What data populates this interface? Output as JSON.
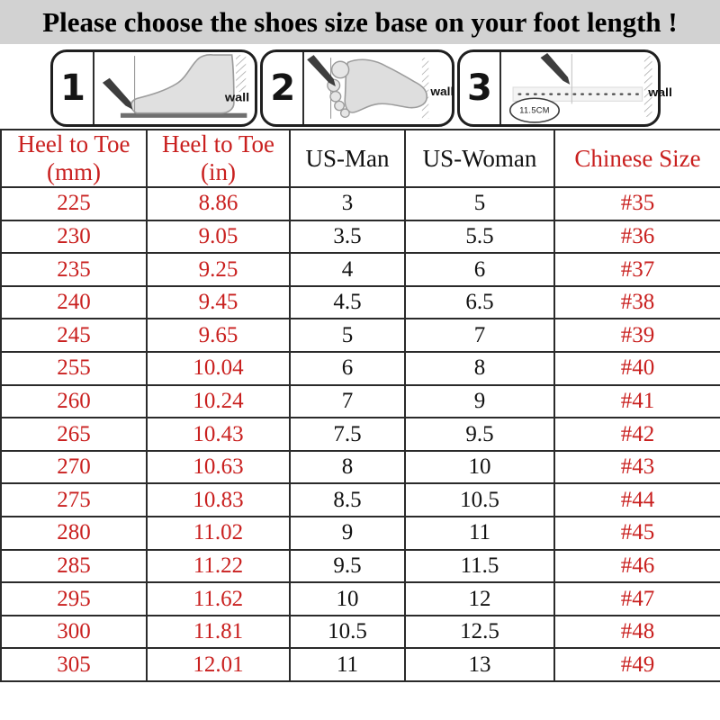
{
  "title": "Please choose the shoes size base on your foot length !",
  "instructions": {
    "panels": [
      {
        "step": "1",
        "wall_label": "wall"
      },
      {
        "step": "2",
        "wall_label": "wall"
      },
      {
        "step": "3",
        "wall_label": "wall",
        "measure_label": "11.5CM"
      }
    ]
  },
  "size_table": {
    "headers": [
      {
        "line1": "Heel to Toe",
        "line2": "(mm)",
        "color": "red"
      },
      {
        "line1": "Heel to Toe",
        "line2": "(in)",
        "color": "red"
      },
      {
        "line1": "US-Man",
        "line2": "",
        "color": "black"
      },
      {
        "line1": "US-Woman",
        "line2": "",
        "color": "black"
      },
      {
        "line1": "Chinese Size",
        "line2": "",
        "color": "red"
      }
    ],
    "red_columns": [
      0,
      1,
      4
    ],
    "rows": [
      [
        "225",
        "8.86",
        "3",
        "5",
        "#35"
      ],
      [
        "230",
        "9.05",
        "3.5",
        "5.5",
        "#36"
      ],
      [
        "235",
        "9.25",
        "4",
        "6",
        "#37"
      ],
      [
        "240",
        "9.45",
        "4.5",
        "6.5",
        "#38"
      ],
      [
        "245",
        "9.65",
        "5",
        "7",
        "#39"
      ],
      [
        "255",
        "10.04",
        "6",
        "8",
        "#40"
      ],
      [
        "260",
        "10.24",
        "7",
        "9",
        "#41"
      ],
      [
        "265",
        "10.43",
        "7.5",
        "9.5",
        "#42"
      ],
      [
        "270",
        "10.63",
        "8",
        "10",
        "#43"
      ],
      [
        "275",
        "10.83",
        "8.5",
        "10.5",
        "#44"
      ],
      [
        "280",
        "11.02",
        "9",
        "11",
        "#45"
      ],
      [
        "285",
        "11.22",
        "9.5",
        "11.5",
        "#46"
      ],
      [
        "295",
        "11.62",
        "10",
        "12",
        "#47"
      ],
      [
        "300",
        "11.81",
        "10.5",
        "12.5",
        "#48"
      ],
      [
        "305",
        "12.01",
        "11",
        "13",
        "#49"
      ]
    ]
  },
  "chart_data": {
    "type": "table",
    "title": "Please choose the shoes size base on your foot length !",
    "columns": [
      "Heel to Toe (mm)",
      "Heel to Toe (in)",
      "US-Man",
      "US-Woman",
      "Chinese Size"
    ],
    "rows": [
      [
        225,
        8.86,
        3,
        5,
        "#35"
      ],
      [
        230,
        9.05,
        3.5,
        5.5,
        "#36"
      ],
      [
        235,
        9.25,
        4,
        6,
        "#37"
      ],
      [
        240,
        9.45,
        4.5,
        6.5,
        "#38"
      ],
      [
        245,
        9.65,
        5,
        7,
        "#39"
      ],
      [
        255,
        10.04,
        6,
        8,
        "#40"
      ],
      [
        260,
        10.24,
        7,
        9,
        "#41"
      ],
      [
        265,
        10.43,
        7.5,
        9.5,
        "#42"
      ],
      [
        270,
        10.63,
        8,
        10,
        "#43"
      ],
      [
        275,
        10.83,
        8.5,
        10.5,
        "#44"
      ],
      [
        280,
        11.02,
        9,
        11,
        "#45"
      ],
      [
        285,
        11.22,
        9.5,
        11.5,
        "#46"
      ],
      [
        295,
        11.62,
        10,
        12,
        "#47"
      ],
      [
        300,
        11.81,
        10.5,
        12.5,
        "#48"
      ],
      [
        305,
        12.01,
        11,
        13,
        "#49"
      ]
    ]
  },
  "colors": {
    "red": "#c9201f",
    "text_black": "#121212",
    "title_bg": "#d2d2d2",
    "border": "#2a2a2a"
  }
}
